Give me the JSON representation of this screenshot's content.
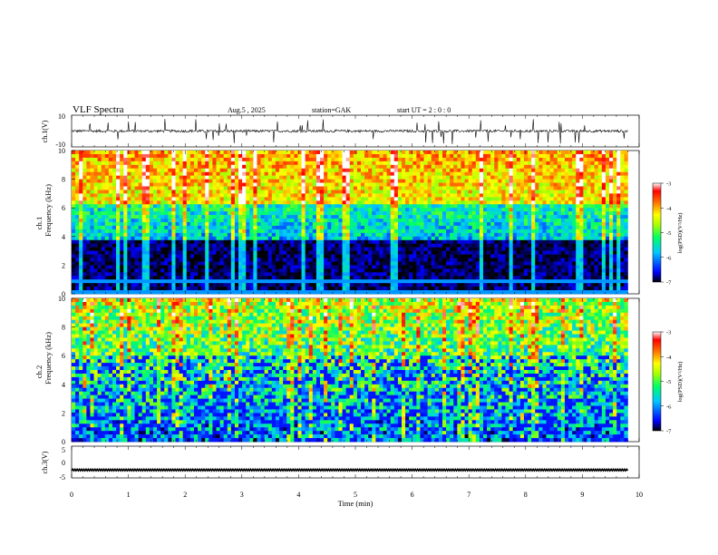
{
  "header": {
    "title": "VLF  Spectra",
    "date": "Aug.5   , 2025",
    "station": "station=GAK",
    "start_ut": "start  UT  =    2  : 0   : 0"
  },
  "chart_data": [
    {
      "type": "line",
      "name": "ch1-waveform",
      "ylabel": "ch.1(V)",
      "ylim": [
        -10,
        10
      ],
      "y_ticks": [
        "10",
        "-10"
      ],
      "xlim": [
        0,
        10
      ],
      "baseline_v": 0,
      "notes": "dense noisy waveform near 0 V with occasional spikes"
    },
    {
      "type": "heatmap",
      "name": "ch1-spectrogram",
      "ylabel": "ch.1\nFrequency  (kHz)",
      "ylabel_line1": "ch.1",
      "ylabel_line2": "Frequency  (kHz)",
      "ylim": [
        0,
        10
      ],
      "y_ticks": [
        "0",
        "2",
        "4",
        "6",
        "8",
        "10"
      ],
      "xlim": [
        0,
        9.8
      ],
      "colorbar": {
        "label": "log(PSD)(V²/Hz)",
        "range": [
          -7,
          -3
        ],
        "ticks": [
          "-3",
          "-4",
          "-5",
          "-6",
          "-7"
        ],
        "colors": [
          "#000000",
          "#0000ff",
          "#00c8ff",
          "#00ff66",
          "#aaff00",
          "#ffff00",
          "#ff7700",
          "#ff0000",
          "#ffffff"
        ]
      }
    },
    {
      "type": "heatmap",
      "name": "ch2-spectrogram",
      "ylabel_line1": "ch.2",
      "ylabel_line2": "Frequency  (kHz)",
      "ylim": [
        0,
        10
      ],
      "y_ticks": [
        "0",
        "2",
        "4",
        "6",
        "8",
        "10"
      ],
      "xlim": [
        0,
        9.8
      ],
      "colorbar": {
        "label": "log(PSD)(V²/Hz)",
        "range": [
          -7,
          -3
        ],
        "ticks": [
          "-3",
          "-4",
          "-5",
          "-6",
          "-7"
        ]
      }
    },
    {
      "type": "line",
      "name": "ch3-waveform",
      "ylabel": "ch.3(V)",
      "ylim": [
        -5,
        5
      ],
      "y_ticks": [
        "5",
        "0",
        "-5"
      ],
      "xlim": [
        0,
        9.8
      ],
      "baseline_v": -2.5,
      "xlabel": "Time  (min)",
      "x_ticks": [
        "0",
        "1",
        "2",
        "3",
        "4",
        "5",
        "6",
        "7",
        "8",
        "9",
        "10"
      ]
    }
  ]
}
